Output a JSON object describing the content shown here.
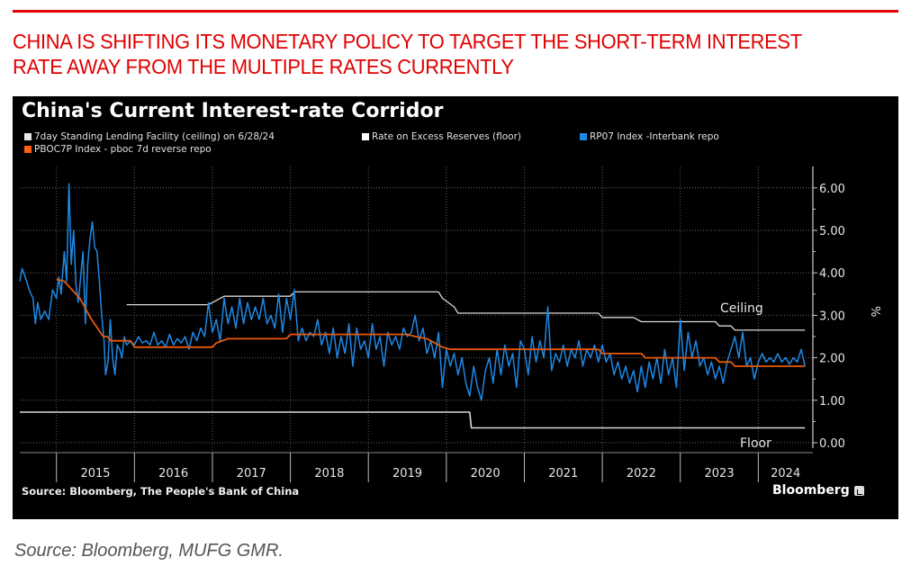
{
  "headline": "CHINA IS SHIFTING ITS MONETARY POLICY TO TARGET THE SHORT-TERM INTEREST RATE AWAY FROM THE MULTIPLE RATES CURRENTLY",
  "footer_source": "Source: Bloomberg, MUFG GMR.",
  "chart_source": "Source: Bloomberg, The People's Bank of China",
  "brand": "Bloomberg",
  "colors": {
    "headline": "#e00000",
    "ceiling": "#d9d9d9",
    "floor": "#d9d9d9",
    "rp07": "#1e88e5",
    "pboc": "#e8590c",
    "background": "#000000"
  },
  "chart_data": {
    "type": "line",
    "title": "China's Current Interest-rate Corridor",
    "xlabel": "",
    "ylabel": "%",
    "xlim": [
      2014.53,
      2024.7
    ],
    "ylim": [
      0,
      6.5
    ],
    "y_ticks": [
      "0.00",
      "1.00",
      "2.00",
      "3.00",
      "4.00",
      "5.00",
      "6.00"
    ],
    "x_tick_labels": [
      "2015",
      "2016",
      "2017",
      "2018",
      "2019",
      "2020",
      "2021",
      "2022",
      "2023",
      "2024"
    ],
    "grid": true,
    "legend_position": "top-left",
    "annotations": [
      {
        "text": "Ceiling",
        "x": 2024.1,
        "y": 3.2
      },
      {
        "text": "Floor",
        "x": 2024.1,
        "y": 0.0
      }
    ],
    "series": [
      {
        "name": "7day Standing Lending Facility (ceiling) on 6/28/24",
        "key": "ceiling",
        "step": true,
        "points": [
          [
            2015.9,
            3.25
          ],
          [
            2016.95,
            3.25
          ],
          [
            2017.05,
            3.35
          ],
          [
            2017.15,
            3.45
          ],
          [
            2018.0,
            3.45
          ],
          [
            2018.05,
            3.55
          ],
          [
            2019.9,
            3.55
          ],
          [
            2019.95,
            3.4
          ],
          [
            2020.1,
            3.2
          ],
          [
            2020.15,
            3.05
          ],
          [
            2021.95,
            3.05
          ],
          [
            2022.0,
            2.95
          ],
          [
            2022.4,
            2.95
          ],
          [
            2022.5,
            2.85
          ],
          [
            2023.45,
            2.85
          ],
          [
            2023.5,
            2.75
          ],
          [
            2023.65,
            2.75
          ],
          [
            2023.7,
            2.65
          ],
          [
            2024.6,
            2.65
          ]
        ]
      },
      {
        "name": "Rate on Excess Reserves (floor)",
        "key": "floor",
        "step": true,
        "points": [
          [
            2014.53,
            0.72
          ],
          [
            2020.3,
            0.72
          ],
          [
            2020.32,
            0.35
          ],
          [
            2024.6,
            0.35
          ]
        ]
      },
      {
        "name": "RP07 Index -Interbank repo",
        "key": "rp07",
        "points": [
          [
            2014.53,
            3.8
          ],
          [
            2014.56,
            4.1
          ],
          [
            2014.6,
            3.9
          ],
          [
            2014.65,
            3.6
          ],
          [
            2014.7,
            3.4
          ],
          [
            2014.73,
            2.8
          ],
          [
            2014.76,
            3.3
          ],
          [
            2014.8,
            2.9
          ],
          [
            2014.85,
            3.1
          ],
          [
            2014.9,
            2.9
          ],
          [
            2014.95,
            3.6
          ],
          [
            2015.0,
            3.4
          ],
          [
            2015.03,
            3.9
          ],
          [
            2015.06,
            3.5
          ],
          [
            2015.1,
            4.5
          ],
          [
            2015.13,
            3.8
          ],
          [
            2015.16,
            6.1
          ],
          [
            2015.19,
            4.2
          ],
          [
            2015.22,
            5.0
          ],
          [
            2015.25,
            3.7
          ],
          [
            2015.28,
            3.3
          ],
          [
            2015.31,
            3.9
          ],
          [
            2015.34,
            4.5
          ],
          [
            2015.37,
            2.8
          ],
          [
            2015.4,
            4.2
          ],
          [
            2015.43,
            4.8
          ],
          [
            2015.46,
            5.2
          ],
          [
            2015.49,
            4.6
          ],
          [
            2015.52,
            4.5
          ],
          [
            2015.55,
            3.8
          ],
          [
            2015.58,
            3.0
          ],
          [
            2015.61,
            2.4
          ],
          [
            2015.63,
            1.6
          ],
          [
            2015.66,
            1.9
          ],
          [
            2015.69,
            2.9
          ],
          [
            2015.72,
            2.0
          ],
          [
            2015.75,
            1.6
          ],
          [
            2015.78,
            2.3
          ],
          [
            2015.81,
            2.2
          ],
          [
            2015.84,
            2.0
          ],
          [
            2015.87,
            2.5
          ],
          [
            2015.9,
            2.3
          ],
          [
            2015.95,
            2.4
          ],
          [
            2016.0,
            2.3
          ],
          [
            2016.05,
            2.5
          ],
          [
            2016.1,
            2.35
          ],
          [
            2016.15,
            2.4
          ],
          [
            2016.2,
            2.3
          ],
          [
            2016.25,
            2.6
          ],
          [
            2016.3,
            2.3
          ],
          [
            2016.35,
            2.4
          ],
          [
            2016.4,
            2.25
          ],
          [
            2016.45,
            2.55
          ],
          [
            2016.5,
            2.3
          ],
          [
            2016.55,
            2.45
          ],
          [
            2016.6,
            2.35
          ],
          [
            2016.65,
            2.5
          ],
          [
            2016.7,
            2.2
          ],
          [
            2016.75,
            2.6
          ],
          [
            2016.8,
            2.4
          ],
          [
            2016.85,
            2.7
          ],
          [
            2016.9,
            2.5
          ],
          [
            2016.95,
            3.3
          ],
          [
            2017.0,
            2.6
          ],
          [
            2017.05,
            2.9
          ],
          [
            2017.1,
            2.4
          ],
          [
            2017.15,
            3.4
          ],
          [
            2017.2,
            2.8
          ],
          [
            2017.25,
            3.2
          ],
          [
            2017.3,
            2.7
          ],
          [
            2017.35,
            3.4
          ],
          [
            2017.4,
            2.8
          ],
          [
            2017.45,
            3.3
          ],
          [
            2017.5,
            2.9
          ],
          [
            2017.55,
            3.2
          ],
          [
            2017.6,
            2.9
          ],
          [
            2017.65,
            3.4
          ],
          [
            2017.7,
            2.8
          ],
          [
            2017.75,
            3.0
          ],
          [
            2017.8,
            2.7
          ],
          [
            2017.85,
            3.5
          ],
          [
            2017.9,
            2.6
          ],
          [
            2017.95,
            3.4
          ],
          [
            2018.0,
            2.9
          ],
          [
            2018.05,
            3.6
          ],
          [
            2018.1,
            2.4
          ],
          [
            2018.15,
            2.7
          ],
          [
            2018.2,
            2.4
          ],
          [
            2018.25,
            2.6
          ],
          [
            2018.3,
            2.5
          ],
          [
            2018.35,
            2.9
          ],
          [
            2018.4,
            2.3
          ],
          [
            2018.45,
            2.6
          ],
          [
            2018.5,
            2.1
          ],
          [
            2018.55,
            2.7
          ],
          [
            2018.6,
            2.0
          ],
          [
            2018.65,
            2.5
          ],
          [
            2018.7,
            2.1
          ],
          [
            2018.75,
            2.8
          ],
          [
            2018.8,
            1.8
          ],
          [
            2018.85,
            2.7
          ],
          [
            2018.9,
            2.2
          ],
          [
            2018.95,
            2.4
          ],
          [
            2019.0,
            2.0
          ],
          [
            2019.05,
            2.8
          ],
          [
            2019.1,
            2.2
          ],
          [
            2019.15,
            2.5
          ],
          [
            2019.2,
            1.8
          ],
          [
            2019.25,
            2.6
          ],
          [
            2019.3,
            2.3
          ],
          [
            2019.35,
            2.5
          ],
          [
            2019.4,
            2.2
          ],
          [
            2019.45,
            2.7
          ],
          [
            2019.5,
            2.5
          ],
          [
            2019.55,
            2.6
          ],
          [
            2019.6,
            3.0
          ],
          [
            2019.65,
            2.4
          ],
          [
            2019.7,
            2.7
          ],
          [
            2019.75,
            2.1
          ],
          [
            2019.8,
            2.4
          ],
          [
            2019.85,
            2.0
          ],
          [
            2019.9,
            2.6
          ],
          [
            2019.95,
            1.3
          ],
          [
            2020.0,
            2.2
          ],
          [
            2020.05,
            1.8
          ],
          [
            2020.1,
            2.1
          ],
          [
            2020.15,
            1.6
          ],
          [
            2020.2,
            2.0
          ],
          [
            2020.25,
            1.4
          ],
          [
            2020.3,
            1.1
          ],
          [
            2020.35,
            1.8
          ],
          [
            2020.4,
            1.3
          ],
          [
            2020.45,
            1.0
          ],
          [
            2020.5,
            1.7
          ],
          [
            2020.55,
            2.0
          ],
          [
            2020.6,
            1.4
          ],
          [
            2020.65,
            2.2
          ],
          [
            2020.7,
            1.6
          ],
          [
            2020.75,
            2.3
          ],
          [
            2020.8,
            1.8
          ],
          [
            2020.85,
            2.1
          ],
          [
            2020.9,
            1.3
          ],
          [
            2020.95,
            2.4
          ],
          [
            2021.0,
            2.2
          ],
          [
            2021.05,
            1.6
          ],
          [
            2021.1,
            2.5
          ],
          [
            2021.15,
            1.9
          ],
          [
            2021.2,
            2.4
          ],
          [
            2021.25,
            2.0
          ],
          [
            2021.3,
            3.2
          ],
          [
            2021.35,
            1.7
          ],
          [
            2021.4,
            2.1
          ],
          [
            2021.45,
            1.9
          ],
          [
            2021.5,
            2.3
          ],
          [
            2021.55,
            1.8
          ],
          [
            2021.6,
            2.2
          ],
          [
            2021.65,
            2.0
          ],
          [
            2021.7,
            2.4
          ],
          [
            2021.75,
            1.8
          ],
          [
            2021.8,
            2.2
          ],
          [
            2021.85,
            2.0
          ],
          [
            2021.9,
            2.3
          ],
          [
            2021.95,
            1.9
          ],
          [
            2022.0,
            2.3
          ],
          [
            2022.05,
            1.9
          ],
          [
            2022.1,
            2.1
          ],
          [
            2022.15,
            1.6
          ],
          [
            2022.2,
            1.9
          ],
          [
            2022.25,
            1.5
          ],
          [
            2022.3,
            1.8
          ],
          [
            2022.35,
            1.4
          ],
          [
            2022.4,
            1.7
          ],
          [
            2022.45,
            1.2
          ],
          [
            2022.5,
            1.8
          ],
          [
            2022.55,
            1.3
          ],
          [
            2022.6,
            1.9
          ],
          [
            2022.65,
            1.5
          ],
          [
            2022.7,
            2.0
          ],
          [
            2022.75,
            1.4
          ],
          [
            2022.8,
            2.2
          ],
          [
            2022.85,
            1.6
          ],
          [
            2022.9,
            2.0
          ],
          [
            2022.95,
            1.3
          ],
          [
            2023.0,
            2.9
          ],
          [
            2023.05,
            1.7
          ],
          [
            2023.1,
            2.6
          ],
          [
            2023.15,
            2.0
          ],
          [
            2023.2,
            2.4
          ],
          [
            2023.25,
            1.8
          ],
          [
            2023.3,
            2.0
          ],
          [
            2023.35,
            1.6
          ],
          [
            2023.4,
            1.9
          ],
          [
            2023.45,
            1.5
          ],
          [
            2023.5,
            1.8
          ],
          [
            2023.55,
            1.4
          ],
          [
            2023.6,
            1.9
          ],
          [
            2023.65,
            2.2
          ],
          [
            2023.7,
            2.5
          ],
          [
            2023.75,
            2.0
          ],
          [
            2023.8,
            2.6
          ],
          [
            2023.85,
            1.8
          ],
          [
            2023.9,
            2.0
          ],
          [
            2023.95,
            1.5
          ],
          [
            2024.0,
            1.9
          ],
          [
            2024.05,
            2.1
          ],
          [
            2024.1,
            1.9
          ],
          [
            2024.15,
            2.0
          ],
          [
            2024.2,
            1.9
          ],
          [
            2024.25,
            2.1
          ],
          [
            2024.3,
            1.9
          ],
          [
            2024.35,
            2.0
          ],
          [
            2024.4,
            1.85
          ],
          [
            2024.45,
            2.0
          ],
          [
            2024.5,
            1.9
          ],
          [
            2024.55,
            2.2
          ],
          [
            2024.6,
            1.8
          ]
        ]
      },
      {
        "name": "PBOC7P Index - pboc 7d reverse repo",
        "key": "pboc",
        "points": [
          [
            2015.0,
            3.85
          ],
          [
            2015.1,
            3.8
          ],
          [
            2015.3,
            3.4
          ],
          [
            2015.45,
            2.9
          ],
          [
            2015.6,
            2.5
          ],
          [
            2015.65,
            2.5
          ],
          [
            2015.7,
            2.4
          ],
          [
            2015.95,
            2.4
          ],
          [
            2016.0,
            2.25
          ],
          [
            2017.0,
            2.25
          ],
          [
            2017.05,
            2.35
          ],
          [
            2017.2,
            2.45
          ],
          [
            2017.95,
            2.45
          ],
          [
            2018.0,
            2.55
          ],
          [
            2019.5,
            2.55
          ],
          [
            2019.6,
            2.5
          ],
          [
            2019.75,
            2.45
          ],
          [
            2019.85,
            2.35
          ],
          [
            2019.95,
            2.25
          ],
          [
            2020.05,
            2.2
          ],
          [
            2021.95,
            2.2
          ],
          [
            2022.0,
            2.1
          ],
          [
            2022.5,
            2.1
          ],
          [
            2022.55,
            2.0
          ],
          [
            2023.45,
            2.0
          ],
          [
            2023.5,
            1.9
          ],
          [
            2023.65,
            1.9
          ],
          [
            2023.7,
            1.8
          ],
          [
            2024.6,
            1.8
          ]
        ]
      }
    ]
  }
}
